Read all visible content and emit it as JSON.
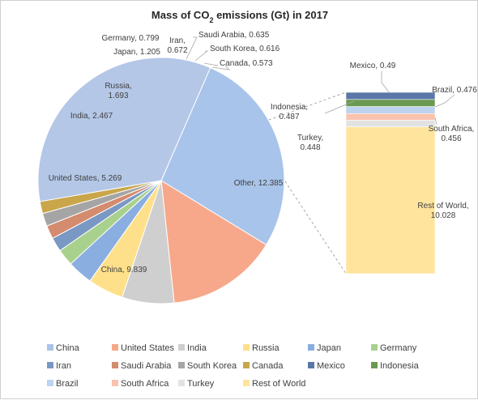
{
  "chart_data": {
    "type": "pie",
    "variant": "bar-of-pie",
    "title_main": "Mass of CO",
    "title_sub": "2",
    "title_rest": " emissions (Gt) in 2017",
    "series": [
      {
        "name": "China",
        "value": 9.839,
        "label": "China, 9.839",
        "color": "#a9c4ea"
      },
      {
        "name": "United States",
        "value": 5.269,
        "label": "United States, 5.269",
        "color": "#f7a88a"
      },
      {
        "name": "India",
        "value": 2.467,
        "label": "India, 2.467",
        "color": "#cfcfcf"
      },
      {
        "name": "Russia",
        "value": 1.693,
        "label": "Russia, 1.693",
        "color": "#ffe08a"
      },
      {
        "name": "Japan",
        "value": 1.205,
        "label": "Japan, 1.205",
        "color": "#8aaee0"
      },
      {
        "name": "Germany",
        "value": 0.799,
        "label": "Germany, 0.799",
        "color": "#a9d18e"
      },
      {
        "name": "Iran",
        "value": 0.672,
        "label": "Iran, 0.672",
        "color": "#7a98c4"
      },
      {
        "name": "Saudi Arabia",
        "value": 0.635,
        "label": "Saudi Arabia, 0.635",
        "color": "#d48b6e"
      },
      {
        "name": "South Korea",
        "value": 0.616,
        "label": "South Korea, 0.616",
        "color": "#a5a5a5"
      },
      {
        "name": "Canada",
        "value": 0.573,
        "label": "Canada, 0.573",
        "color": "#c9a64a"
      },
      {
        "name": "Mexico",
        "value": 0.49,
        "label": "Mexico, 0.49",
        "color": "#5a77a8"
      },
      {
        "name": "Indonesia",
        "value": 0.487,
        "label": "Indonesia, 0.487",
        "color": "#6a9a52"
      },
      {
        "name": "Brazil",
        "value": 0.476,
        "label": "Brazil, 0.476",
        "color": "#bdd3f0"
      },
      {
        "name": "South Africa",
        "value": 0.456,
        "label": "South Africa, 0.456",
        "color": "#f9c3ad"
      },
      {
        "name": "Turkey",
        "value": 0.448,
        "label": "Turkey, 0.448",
        "color": "#e2e2e2"
      },
      {
        "name": "Rest of World",
        "value": 10.028,
        "label": "Rest of World, 10.028",
        "color": "#ffe49e"
      }
    ],
    "other": {
      "name": "Other",
      "value": 12.385,
      "label": "Other, 12.385",
      "color": "#b4c7e7"
    },
    "other_members": [
      "Rest of World",
      "Turkey",
      "South Africa",
      "Brazil",
      "Indonesia",
      "Mexico"
    ],
    "legend_position": "bottom",
    "grid": false
  }
}
